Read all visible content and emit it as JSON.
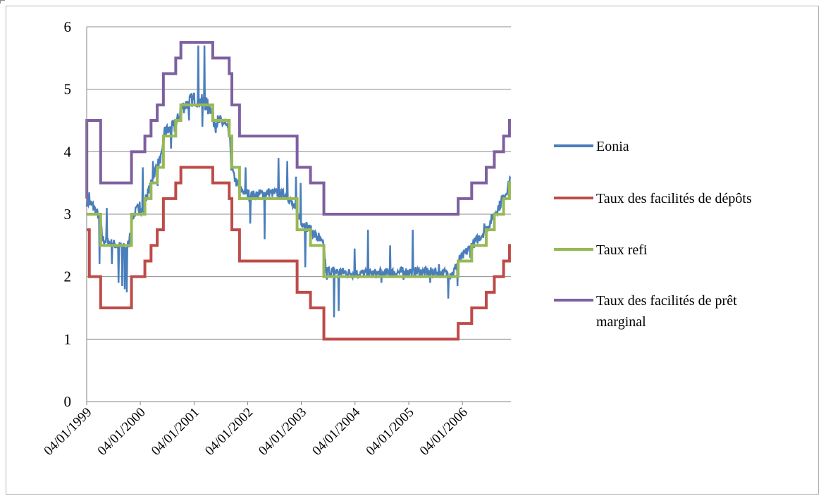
{
  "chart_data": {
    "type": "line",
    "title": "",
    "xlabel": "",
    "ylabel": "",
    "ylim": [
      0,
      6
    ],
    "yticks": [
      "0",
      "1",
      "2",
      "3",
      "4",
      "5",
      "6"
    ],
    "xlim": [
      "1999-01-04",
      "2006-11-30"
    ],
    "xticks": [
      "04/01/1999",
      "04/01/2000",
      "04/01/2001",
      "04/01/2002",
      "04/01/2003",
      "04/01/2004",
      "04/01/2005",
      "04/01/2006"
    ],
    "grid": true,
    "legend_position": "right",
    "series": [
      {
        "name": "Eonia",
        "color": "#4a7ebb",
        "style": "noisy",
        "points": [
          [
            "1999-01-04",
            3.2
          ],
          [
            "1999-02-10",
            3.15
          ],
          [
            "1999-03-20",
            3.0
          ],
          [
            "1999-04-08",
            2.9
          ],
          [
            "1999-04-20",
            2.6
          ],
          [
            "1999-06-01",
            2.55
          ],
          [
            "1999-08-01",
            2.5
          ],
          [
            "1999-10-01",
            2.45
          ],
          [
            "1999-11-01",
            2.6
          ],
          [
            "1999-11-10",
            2.95
          ],
          [
            "1999-12-20",
            3.1
          ],
          [
            "2000-02-01",
            3.05
          ],
          [
            "2000-02-10",
            3.25
          ],
          [
            "2000-03-20",
            3.5
          ],
          [
            "2000-04-20",
            3.75
          ],
          [
            "2000-06-01",
            3.95
          ],
          [
            "2000-06-15",
            4.3
          ],
          [
            "2000-09-01",
            4.4
          ],
          [
            "2000-10-10",
            4.7
          ],
          [
            "2000-12-31",
            4.85
          ],
          [
            "2001-03-01",
            4.8
          ],
          [
            "2001-05-01",
            4.7
          ],
          [
            "2001-05-15",
            4.5
          ],
          [
            "2001-08-01",
            4.45
          ],
          [
            "2001-08-31",
            4.25
          ],
          [
            "2001-09-18",
            3.75
          ],
          [
            "2001-10-01",
            3.6
          ],
          [
            "2001-11-09",
            3.4
          ],
          [
            "2002-02-01",
            3.3
          ],
          [
            "2002-06-01",
            3.35
          ],
          [
            "2002-10-01",
            3.3
          ],
          [
            "2002-12-06",
            3.0
          ],
          [
            "2003-01-15",
            2.85
          ],
          [
            "2003-03-07",
            2.75
          ],
          [
            "2003-06-06",
            2.5
          ],
          [
            "2003-06-20",
            2.1
          ],
          [
            "2004-01-01",
            2.05
          ],
          [
            "2004-06-01",
            2.05
          ],
          [
            "2005-01-01",
            2.08
          ],
          [
            "2005-06-01",
            2.07
          ],
          [
            "2005-11-01",
            2.05
          ],
          [
            "2005-12-06",
            2.25
          ],
          [
            "2006-01-15",
            2.35
          ],
          [
            "2006-03-08",
            2.5
          ],
          [
            "2006-06-15",
            2.75
          ],
          [
            "2006-08-09",
            3.0
          ],
          [
            "2006-10-11",
            3.25
          ],
          [
            "2006-11-20",
            3.5
          ],
          [
            "2006-11-30",
            3.7
          ]
        ],
        "spikes": [
          [
            "1999-01-20",
            3.35
          ],
          [
            "1999-03-31",
            2.2
          ],
          [
            "1999-05-20",
            3.1
          ],
          [
            "1999-06-25",
            2.2
          ],
          [
            "1999-08-10",
            1.9
          ],
          [
            "1999-09-01",
            1.85
          ],
          [
            "1999-09-20",
            1.8
          ],
          [
            "1999-10-05",
            1.75
          ],
          [
            "1999-10-25",
            2.7
          ],
          [
            "1999-12-31",
            3.2
          ],
          [
            "2000-01-20",
            3.75
          ],
          [
            "2000-03-31",
            3.85
          ],
          [
            "2000-05-01",
            3.45
          ],
          [
            "2000-06-30",
            4.4
          ],
          [
            "2000-08-01",
            4.05
          ],
          [
            "2000-11-30",
            4.5
          ],
          [
            "2001-01-31",
            5.7
          ],
          [
            "2001-02-28",
            4.4
          ],
          [
            "2001-03-15",
            5.7
          ],
          [
            "2001-04-10",
            4.6
          ],
          [
            "2001-05-31",
            4.3
          ],
          [
            "2001-06-29",
            4.55
          ],
          [
            "2001-09-15",
            3.7
          ],
          [
            "2001-10-10",
            3.55
          ],
          [
            "2001-12-20",
            3.75
          ],
          [
            "2002-01-20",
            2.85
          ],
          [
            "2002-04-30",
            2.6
          ],
          [
            "2002-07-31",
            3.9
          ],
          [
            "2002-09-30",
            3.85
          ],
          [
            "2002-11-29",
            3.6
          ],
          [
            "2002-12-31",
            3.5
          ],
          [
            "2003-01-31",
            2.15
          ],
          [
            "2003-04-30",
            2.7
          ],
          [
            "2003-06-25",
            1.95
          ],
          [
            "2003-08-15",
            1.35
          ],
          [
            "2003-09-15",
            1.45
          ],
          [
            "2003-12-31",
            2.45
          ],
          [
            "2004-03-31",
            2.75
          ],
          [
            "2004-06-30",
            1.9
          ],
          [
            "2004-08-31",
            2.5
          ],
          [
            "2004-11-30",
            1.95
          ],
          [
            "2005-01-31",
            2.75
          ],
          [
            "2005-05-31",
            1.9
          ],
          [
            "2005-07-29",
            2.2
          ],
          [
            "2005-09-30",
            1.65
          ],
          [
            "2005-11-30",
            1.85
          ],
          [
            "2006-02-28",
            2.3
          ],
          [
            "2006-05-31",
            2.85
          ],
          [
            "2006-09-29",
            3.3
          ]
        ]
      },
      {
        "name": "Taux des facilités de dépôts",
        "color": "#be4b48",
        "style": "step",
        "points": [
          [
            "1999-01-04",
            2.75
          ],
          [
            "1999-01-22",
            2.0
          ],
          [
            "1999-04-09",
            1.5
          ],
          [
            "1999-11-05",
            2.0
          ],
          [
            "2000-02-04",
            2.25
          ],
          [
            "2000-03-17",
            2.5
          ],
          [
            "2000-04-28",
            2.75
          ],
          [
            "2000-06-09",
            3.25
          ],
          [
            "2000-09-01",
            3.5
          ],
          [
            "2000-10-06",
            3.75
          ],
          [
            "2001-05-11",
            3.5
          ],
          [
            "2001-08-31",
            3.25
          ],
          [
            "2001-09-18",
            2.75
          ],
          [
            "2001-11-09",
            2.25
          ],
          [
            "2002-12-06",
            1.75
          ],
          [
            "2003-03-07",
            1.5
          ],
          [
            "2003-06-06",
            1.0
          ],
          [
            "2005-12-06",
            1.25
          ],
          [
            "2006-03-08",
            1.5
          ],
          [
            "2006-06-15",
            1.75
          ],
          [
            "2006-08-09",
            2.0
          ],
          [
            "2006-10-11",
            2.25
          ],
          [
            "2006-11-20",
            2.5
          ],
          [
            "2006-11-30",
            2.5
          ]
        ]
      },
      {
        "name": "Taux refi",
        "color": "#98b954",
        "style": "step",
        "points": [
          [
            "1999-01-04",
            3.0
          ],
          [
            "1999-04-09",
            2.5
          ],
          [
            "1999-11-05",
            3.0
          ],
          [
            "2000-02-04",
            3.25
          ],
          [
            "2000-03-17",
            3.5
          ],
          [
            "2000-04-28",
            3.75
          ],
          [
            "2000-06-09",
            4.25
          ],
          [
            "2000-09-01",
            4.5
          ],
          [
            "2000-10-06",
            4.75
          ],
          [
            "2001-05-11",
            4.5
          ],
          [
            "2001-08-31",
            4.25
          ],
          [
            "2001-09-18",
            3.75
          ],
          [
            "2001-11-09",
            3.25
          ],
          [
            "2002-12-06",
            2.75
          ],
          [
            "2003-03-07",
            2.5
          ],
          [
            "2003-06-06",
            2.0
          ],
          [
            "2005-12-06",
            2.25
          ],
          [
            "2006-03-08",
            2.5
          ],
          [
            "2006-06-15",
            2.75
          ],
          [
            "2006-08-09",
            3.0
          ],
          [
            "2006-10-11",
            3.25
          ],
          [
            "2006-11-20",
            3.5
          ],
          [
            "2006-11-30",
            3.5
          ]
        ]
      },
      {
        "name": "Taux des facilités de prêt marginal",
        "color": "#7d60a0",
        "style": "step",
        "points": [
          [
            "1999-01-04",
            3.25
          ],
          [
            "1999-01-05",
            4.5
          ],
          [
            "1999-04-09",
            3.5
          ],
          [
            "1999-11-05",
            4.0
          ],
          [
            "2000-02-04",
            4.25
          ],
          [
            "2000-03-17",
            4.5
          ],
          [
            "2000-04-28",
            4.75
          ],
          [
            "2000-06-09",
            5.25
          ],
          [
            "2000-09-01",
            5.5
          ],
          [
            "2000-10-06",
            5.75
          ],
          [
            "2001-05-11",
            5.5
          ],
          [
            "2001-08-31",
            5.25
          ],
          [
            "2001-09-18",
            4.75
          ],
          [
            "2001-11-09",
            4.25
          ],
          [
            "2002-12-06",
            3.75
          ],
          [
            "2003-03-07",
            3.5
          ],
          [
            "2003-06-06",
            3.0
          ],
          [
            "2005-12-06",
            3.25
          ],
          [
            "2006-03-08",
            3.5
          ],
          [
            "2006-06-15",
            3.75
          ],
          [
            "2006-08-09",
            4.0
          ],
          [
            "2006-10-11",
            4.25
          ],
          [
            "2006-11-20",
            4.5
          ],
          [
            "2006-11-30",
            4.5
          ]
        ]
      }
    ],
    "legend": [
      "Eonia",
      "Taux des facilités de dépôts",
      "Taux refi",
      "Taux des facilités de prêt marginal"
    ]
  }
}
